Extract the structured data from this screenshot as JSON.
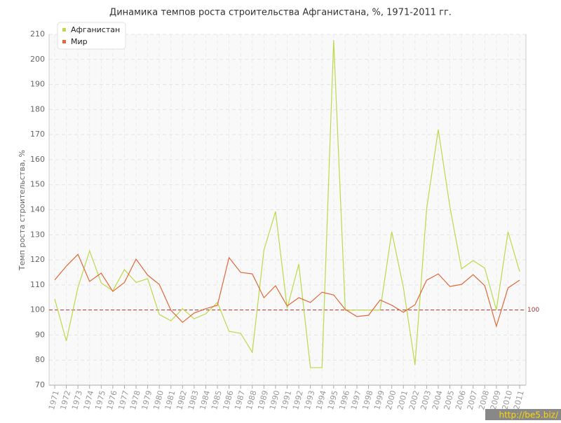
{
  "chart_data": {
    "type": "line",
    "title": "Динамика темпов роста строительства Афганистана, %, 1971-2011 гг.",
    "y_label": "Темп роста строительства, %",
    "categories": [
      "1971",
      "1972",
      "1973",
      "1974",
      "1975",
      "1976",
      "1977",
      "1978",
      "1979",
      "1980",
      "1981",
      "1982",
      "1983",
      "1984",
      "1985",
      "1986",
      "1987",
      "1988",
      "1989",
      "1990",
      "1991",
      "1992",
      "1993",
      "1994",
      "1995",
      "1996",
      "1997",
      "1998",
      "1999",
      "2000",
      "2001",
      "2002",
      "2003",
      "2004",
      "2005",
      "2006",
      "2007",
      "2008",
      "2009",
      "2010",
      "2011"
    ],
    "series": [
      {
        "name": "Афганистан",
        "color": "#bcd94a",
        "values": [
          104.4,
          87.6,
          109,
          123.6,
          110.8,
          107.7,
          116.1,
          111,
          112.5,
          98.2,
          95.7,
          100.5,
          96.5,
          98.5,
          103,
          91.5,
          90.7,
          83.1,
          123.9,
          139.3,
          100.7,
          118.3,
          77,
          77,
          207.7,
          99.9,
          100,
          100,
          100,
          131.2,
          109,
          78.1,
          140.4,
          172,
          141.2,
          116.4,
          119.7,
          116.7,
          100,
          131.2,
          115.3
        ]
      },
      {
        "name": "Мир",
        "color": "#e0683a",
        "values": [
          112,
          117.5,
          122.2,
          111.4,
          114.7,
          107.4,
          111,
          120.3,
          113.9,
          110.2,
          99.9,
          95.1,
          98.8,
          100.5,
          101.9,
          120.9,
          115,
          114.4,
          104.9,
          109.7,
          101.6,
          104.9,
          103,
          107.1,
          106,
          100.2,
          97.4,
          97.9,
          104,
          101.9,
          99.1,
          102.1,
          111.9,
          114.4,
          109.4,
          110.2,
          114.1,
          109.7,
          93.5,
          108.8,
          111.9
        ]
      }
    ],
    "ylim": [
      70,
      210
    ],
    "yticks": [
      70,
      80,
      90,
      100,
      110,
      120,
      130,
      140,
      150,
      160,
      170,
      180,
      190,
      200,
      210
    ],
    "grid": true,
    "legend": "top-left",
    "reference_line": 100,
    "watermark": "http://be5.biz/"
  }
}
